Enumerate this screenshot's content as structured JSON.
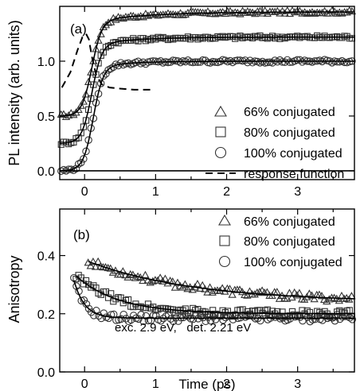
{
  "chart_data": [
    {
      "panel": "(a)",
      "type": "scatter",
      "ylabel": "PL intensity (arb. units)",
      "xlabel": "",
      "xlim": [
        -0.35,
        3.8
      ],
      "ylim": [
        -0.08,
        1.5
      ],
      "x_ticks": [
        "0",
        "1",
        "2",
        "3"
      ],
      "y_ticks": [
        "0.0",
        "0.5",
        "1.0"
      ],
      "y_tick_values": [
        0.0,
        0.5,
        1.0
      ],
      "legend_position": "center-right",
      "series": [
        {
          "name": "66% conjugated",
          "marker": "triangle",
          "baseline": 0.5,
          "plateau": 1.45,
          "x0": 0.1,
          "width": 0.07,
          "slow_amp": 0.09,
          "slow_tau": 0.8
        },
        {
          "name": "80% conjugated",
          "marker": "square",
          "baseline": 0.25,
          "plateau": 1.22,
          "x0": 0.1,
          "width": 0.07,
          "slow_amp": 0.07,
          "slow_tau": 0.6
        },
        {
          "name": "100% conjugated",
          "marker": "circle",
          "baseline": 0.0,
          "plateau": 1.0,
          "x0": 0.12,
          "width": 0.07,
          "slow_amp": 0.05,
          "slow_tau": 0.5
        }
      ],
      "response_function": {
        "name": "response function",
        "x": [
          -0.32,
          -0.2,
          -0.1,
          -0.03,
          0.02,
          0.06,
          0.1,
          0.16,
          0.24,
          0.35,
          0.5,
          0.7,
          0.95
        ],
        "y": [
          0.76,
          0.9,
          1.1,
          1.22,
          1.25,
          1.2,
          1.05,
          0.88,
          0.79,
          0.76,
          0.75,
          0.74,
          0.74
        ]
      }
    },
    {
      "panel": "(b)",
      "type": "scatter",
      "ylabel": "Anisotropy",
      "xlabel": "Time (ps)",
      "xlim": [
        -0.35,
        3.8
      ],
      "ylim": [
        0.0,
        0.56
      ],
      "x_ticks": [
        "0",
        "1",
        "2",
        "3"
      ],
      "y_ticks": [
        "0.0",
        "0.2",
        "0.4"
      ],
      "y_tick_values": [
        0.0,
        0.2,
        0.4
      ],
      "legend_position": "top-right",
      "annotation": "exc. 2.9 eV,   det. 2.21 eV",
      "series": [
        {
          "name": "66% conjugated",
          "marker": "triangle",
          "x_start": 0.05,
          "r_inf": 0.24,
          "r_amp": 0.14,
          "tau": 1.5
        },
        {
          "name": "80% conjugated",
          "marker": "square",
          "x_start": -0.12,
          "r_inf": 0.2,
          "r_amp": 0.13,
          "tau": 0.6
        },
        {
          "name": "100% conjugated",
          "marker": "circle",
          "x_start": -0.15,
          "r_inf": 0.185,
          "r_amp": 0.13,
          "tau": 0.15
        }
      ]
    }
  ]
}
